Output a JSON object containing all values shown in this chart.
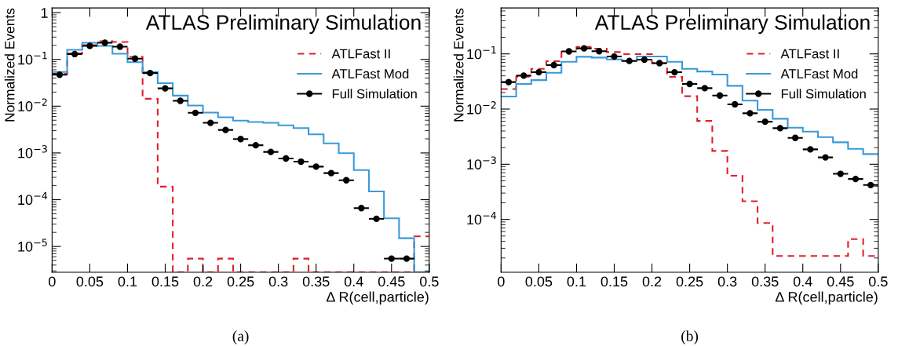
{
  "chart_data": [
    {
      "type": "histogram",
      "title": "ATLAS Preliminary Simulation",
      "xlabel": "Δ R(cell,particle)",
      "ylabel": "Normalized Events",
      "log": "y",
      "legend": "top right",
      "grid": false,
      "bins": [
        0,
        0.02,
        0.04,
        0.06,
        0.08,
        0.1,
        0.12,
        0.14,
        0.16,
        0.18,
        0.2,
        0.22,
        0.24,
        0.26,
        0.28,
        0.3,
        0.32,
        0.34,
        0.36,
        0.38,
        0.4,
        0.42,
        0.44,
        0.46,
        0.48,
        0.5
      ],
      "xlim": [
        0,
        0.5
      ],
      "xticks": [
        0,
        0.05,
        0.1,
        0.15,
        0.2,
        0.25,
        0.3,
        0.35,
        0.4,
        0.45,
        0.5
      ],
      "ylim": [
        2.8e-06,
        1.26
      ],
      "yticks": [
        {
          "value": 1e-05,
          "label": "10$^{−5}$"
        },
        {
          "value": 0.0001,
          "label": "10$^{−4}$"
        },
        {
          "value": 0.001,
          "label": "10$^{−3}$"
        },
        {
          "value": 0.01,
          "label": "10$^{−2}$"
        },
        {
          "value": 0.1,
          "label": "10$^{−1}$"
        },
        1
      ],
      "annotations": [
        "(a)"
      ],
      "series": [
        {
          "name": "ATLFast II",
          "color": "#e0202a",
          "line_style": "dashed",
          "values": [
            0.049,
            0.135,
            0.202,
            0.245,
            0.236,
            0.113,
            0.0144,
            0.00019,
            null,
            5.5e-06,
            null,
            5.5e-06,
            null,
            null,
            null,
            null,
            5.5e-06,
            null,
            null,
            null,
            null,
            null,
            null,
            null,
            1.64e-05
          ]
        },
        {
          "name": "ATLFast Mod",
          "color": "#3a9ad9",
          "line_style": "solid",
          "values": [
            0.054,
            0.16,
            0.227,
            0.195,
            0.132,
            0.0875,
            0.054,
            0.031,
            0.0168,
            0.0103,
            0.0073,
            0.0058,
            0.0049,
            0.0046,
            0.0044,
            0.0039,
            0.0034,
            0.0025,
            0.0016,
            0.00099,
            0.00043,
            0.00015,
            4e-05,
            1.5e-05,
            null
          ]
        },
        {
          "name": "Full Simulation",
          "type": "scatter",
          "color": "#000000",
          "marker": "circle",
          "x": [
            0.01,
            0.03,
            0.05,
            0.07,
            0.09,
            0.11,
            0.13,
            0.15,
            0.17,
            0.19,
            0.21,
            0.23,
            0.25,
            0.27,
            0.29,
            0.31,
            0.33,
            0.35,
            0.37,
            0.39,
            0.41,
            0.43,
            0.45,
            0.47
          ],
          "values": [
            0.047,
            0.13,
            0.195,
            0.227,
            0.187,
            0.104,
            0.051,
            0.024,
            0.013,
            0.0072,
            0.0044,
            0.0031,
            0.00198,
            0.00146,
            0.00105,
            0.00076,
            0.00065,
            0.00051,
            0.00037,
            0.00026,
            6.6e-05,
            3.9e-05,
            5.5e-06,
            5.5e-06
          ],
          "xerrors": [
            0.01,
            0.01,
            0.01,
            0.01,
            0.01,
            0.01,
            0.01,
            0.01,
            0.01,
            0.01,
            0.01,
            0.01,
            0.01,
            0.01,
            0.01,
            0.01,
            0.01,
            0.01,
            0.01,
            0.01,
            0.01,
            0.01,
            0.01,
            0.01
          ]
        }
      ]
    },
    {
      "type": "histogram",
      "title": "ATLAS Preliminary Simulation",
      "xlabel": "Δ R(cell,particle)",
      "ylabel": "Normalized Events",
      "log": "y",
      "legend": "top right",
      "grid": false,
      "bins": [
        0,
        0.02,
        0.04,
        0.06,
        0.08,
        0.1,
        0.12,
        0.14,
        0.16,
        0.18,
        0.2,
        0.22,
        0.24,
        0.26,
        0.28,
        0.3,
        0.32,
        0.34,
        0.36,
        0.38,
        0.4,
        0.42,
        0.44,
        0.46,
        0.48,
        0.5
      ],
      "xlim": [
        0,
        0.5
      ],
      "xticks": [
        0,
        0.05,
        0.1,
        0.15,
        0.2,
        0.25,
        0.3,
        0.35,
        0.4,
        0.45,
        0.5
      ],
      "ylim": [
        1.1e-05,
        0.68
      ],
      "yticks": [
        {
          "value": 0.0001,
          "label": "10$^{−4}$"
        },
        {
          "value": 0.001,
          "label": "10$^{−3}$"
        },
        {
          "value": 0.01,
          "label": "10$^{−2}$"
        },
        {
          "value": 0.1,
          "label": "10$^{−1}$"
        }
      ],
      "annotations": [
        "(b)"
      ],
      "series": [
        {
          "name": "ATLFast II",
          "color": "#e0202a",
          "line_style": "dashed",
          "values": [
            0.0231,
            0.0386,
            0.0537,
            0.0736,
            0.114,
            0.134,
            0.124,
            0.108,
            0.099,
            0.099,
            0.068,
            0.0382,
            0.0171,
            0.0061,
            0.00174,
            0.000618,
            0.000214,
            8.6e-05,
            2.17e-05,
            2.17e-05,
            2.17e-05,
            2.17e-05,
            2.17e-05,
            4.4e-05,
            2.17e-05
          ]
        },
        {
          "name": "ATLFast Mod",
          "color": "#3a9ad9",
          "line_style": "solid",
          "values": [
            0.0169,
            0.0285,
            0.0335,
            0.0455,
            0.072,
            0.0886,
            0.0857,
            0.0795,
            0.075,
            0.0895,
            0.0895,
            0.072,
            0.0537,
            0.048,
            0.0422,
            0.0264,
            0.0142,
            0.00966,
            0.00667,
            0.0046,
            0.0039,
            0.0031,
            0.0025,
            0.0019,
            0.00153
          ]
        },
        {
          "name": "Full Simulation",
          "type": "scatter",
          "color": "#000000",
          "marker": "circle",
          "x": [
            0.01,
            0.03,
            0.05,
            0.07,
            0.09,
            0.11,
            0.13,
            0.15,
            0.17,
            0.19,
            0.21,
            0.23,
            0.25,
            0.27,
            0.29,
            0.31,
            0.33,
            0.35,
            0.37,
            0.39,
            0.41,
            0.43,
            0.45,
            0.47,
            0.49
          ],
          "values": [
            0.0308,
            0.0404,
            0.0465,
            0.0625,
            0.111,
            0.126,
            0.112,
            0.0895,
            0.0745,
            0.0785,
            0.068,
            0.0465,
            0.0285,
            0.0239,
            0.0176,
            0.0122,
            0.0084,
            0.0059,
            0.0045,
            0.003,
            0.00186,
            0.00133,
            0.00067,
            0.00054,
            0.00042
          ],
          "xerrors": [
            0.01,
            0.01,
            0.01,
            0.01,
            0.01,
            0.01,
            0.01,
            0.01,
            0.01,
            0.01,
            0.01,
            0.01,
            0.01,
            0.01,
            0.01,
            0.01,
            0.01,
            0.01,
            0.01,
            0.01,
            0.01,
            0.01,
            0.01,
            0.01,
            0.01
          ]
        }
      ]
    }
  ]
}
